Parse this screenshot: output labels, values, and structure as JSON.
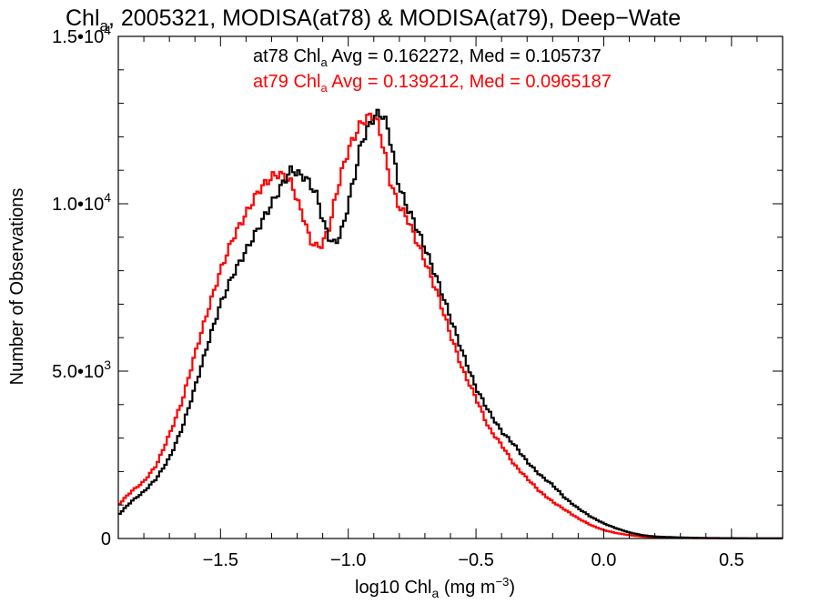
{
  "chart_data": {
    "type": "line",
    "step": true,
    "title": {
      "prefix": "Chl",
      "subscript": "a",
      "suffix": ", 2005321, MODISA(at78) & MODISA(at79), Deep−Wate"
    },
    "xlabel": {
      "prefix": "log10 Chl",
      "subscript": "a",
      "suffix": " (mg m",
      "superscript": "−3",
      "close": ")"
    },
    "ylabel": "Number of Observations",
    "xlim": [
      -1.9,
      0.7
    ],
    "ylim": [
      0,
      15000
    ],
    "xticks": [
      {
        "value": -1.5,
        "label": "−1.5"
      },
      {
        "value": -1.0,
        "label": "−1.0"
      },
      {
        "value": -0.5,
        "label": "−0.5"
      },
      {
        "value": 0.0,
        "label": "0.0"
      },
      {
        "value": 0.5,
        "label": "0.5"
      }
    ],
    "yticks": [
      {
        "value": 0,
        "mantissa": "0",
        "exponent": ""
      },
      {
        "value": 5000,
        "mantissa": "5.0•10",
        "exponent": "3"
      },
      {
        "value": 10000,
        "mantissa": "1.0•10",
        "exponent": "4"
      },
      {
        "value": 15000,
        "mantissa": "1.5•10",
        "exponent": "4"
      }
    ],
    "stats": [
      {
        "prefix": "at78 Chl",
        "subscript": "a",
        "suffix": " Avg = 0.162272, Med = 0.105737",
        "color": "#000000"
      },
      {
        "prefix": "at79 Chl",
        "subscript": "a",
        "suffix": " Avg = 0.139212, Med = 0.0965187",
        "color": "#ff0000"
      }
    ],
    "series": [
      {
        "color": "#000000",
        "x": [
          -1.9,
          -1.85,
          -1.8,
          -1.75,
          -1.7,
          -1.65,
          -1.6,
          -1.55,
          -1.5,
          -1.45,
          -1.4,
          -1.35,
          -1.3,
          -1.27,
          -1.25,
          -1.22,
          -1.2,
          -1.17,
          -1.15,
          -1.12,
          -1.1,
          -1.07,
          -1.05,
          -1.02,
          -1.0,
          -0.97,
          -0.95,
          -0.92,
          -0.9,
          -0.88,
          -0.86,
          -0.84,
          -0.82,
          -0.8,
          -0.77,
          -0.75,
          -0.7,
          -0.65,
          -0.6,
          -0.55,
          -0.5,
          -0.45,
          -0.4,
          -0.35,
          -0.3,
          -0.25,
          -0.2,
          -0.15,
          -0.1,
          -0.05,
          0.0,
          0.05,
          0.1,
          0.15,
          0.2,
          0.3,
          0.4,
          0.5,
          0.6,
          0.7
        ],
        "y": [
          700,
          1100,
          1400,
          1800,
          2400,
          3300,
          4500,
          5800,
          7000,
          7900,
          8600,
          9300,
          10000,
          10400,
          10700,
          11050,
          10900,
          10800,
          10600,
          10200,
          9500,
          8900,
          8800,
          9300,
          10000,
          11000,
          11800,
          12300,
          12600,
          12700,
          12600,
          12100,
          11300,
          10500,
          9900,
          9600,
          8700,
          7700,
          6600,
          5500,
          4500,
          3800,
          3200,
          2800,
          2300,
          1900,
          1600,
          1200,
          900,
          650,
          450,
          300,
          180,
          100,
          60,
          30,
          15,
          10,
          5,
          5
        ]
      },
      {
        "color": "#ff0000",
        "x": [
          -1.9,
          -1.85,
          -1.8,
          -1.75,
          -1.7,
          -1.65,
          -1.6,
          -1.55,
          -1.5,
          -1.45,
          -1.4,
          -1.35,
          -1.3,
          -1.27,
          -1.25,
          -1.22,
          -1.2,
          -1.17,
          -1.15,
          -1.12,
          -1.1,
          -1.07,
          -1.05,
          -1.02,
          -1.0,
          -0.97,
          -0.95,
          -0.92,
          -0.9,
          -0.88,
          -0.86,
          -0.84,
          -0.82,
          -0.8,
          -0.77,
          -0.75,
          -0.7,
          -0.65,
          -0.6,
          -0.55,
          -0.5,
          -0.45,
          -0.4,
          -0.35,
          -0.3,
          -0.25,
          -0.2,
          -0.15,
          -0.1,
          -0.05,
          0.0,
          0.05,
          0.1,
          0.15,
          0.2,
          0.3,
          0.4,
          0.5,
          0.6,
          0.7
        ],
        "y": [
          1000,
          1400,
          1700,
          2200,
          3100,
          4100,
          5500,
          6800,
          8000,
          9000,
          9700,
          10400,
          10800,
          10900,
          10800,
          10600,
          10100,
          9500,
          8900,
          8700,
          8800,
          9400,
          10200,
          11100,
          11600,
          12100,
          12400,
          12600,
          12650,
          12300,
          11600,
          10800,
          10300,
          9900,
          9600,
          9200,
          8300,
          7300,
          6100,
          5000,
          4200,
          3300,
          2800,
          2200,
          1800,
          1400,
          1100,
          850,
          600,
          400,
          250,
          160,
          100,
          60,
          30,
          15,
          10,
          5,
          5,
          5
        ]
      }
    ]
  }
}
